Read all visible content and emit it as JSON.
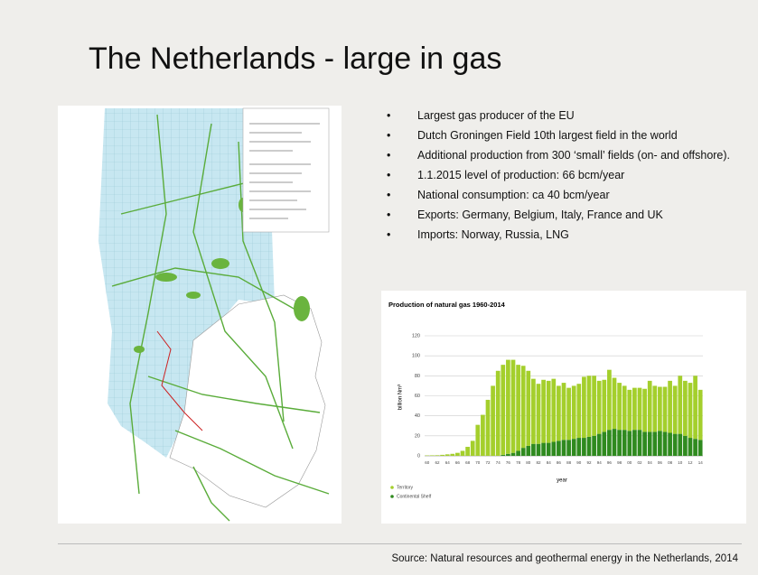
{
  "slide": {
    "title": "The Netherlands - large in gas",
    "bullets": [
      "Largest gas producer of the EU",
      "Dutch Groningen Field 10th largest field in the world",
      "Additional production from 300 ‘small’ fields (on- and offshore).",
      "1.1.2015 level of production: 66 bcm/year",
      "National consumption: ca 40 bcm/year",
      "Exports: Germany, Belgium, Italy, France and UK",
      "Imports: Norway, Russia, LNG"
    ],
    "source": "Source: Natural resources and geothermal energy in the Netherlands, 2014"
  },
  "chart_data": {
    "type": "stacked_bar",
    "title": "Production of natural gas 1960-2014",
    "x_label": "year",
    "y_label": "billion Nm³",
    "categories": [
      "60",
      null,
      "62",
      null,
      "64",
      null,
      "66",
      null,
      "68",
      null,
      "70",
      null,
      "72",
      null,
      "74",
      null,
      "76",
      null,
      "78",
      null,
      "80",
      null,
      "82",
      null,
      "84",
      null,
      "86",
      null,
      "88",
      null,
      "90",
      null,
      "92",
      null,
      "94",
      null,
      "96",
      null,
      "98",
      null,
      "00",
      null,
      "02",
      null,
      "04",
      null,
      "06",
      null,
      "08",
      null,
      "10",
      null,
      "12",
      null,
      "14"
    ],
    "series": [
      {
        "name": "Continental Shelf",
        "color": "#2f8a1f",
        "values": [
          0,
          0,
          0,
          0,
          0,
          0,
          0,
          0,
          0,
          0,
          0,
          0,
          0,
          0,
          0,
          1,
          2,
          3,
          5,
          8,
          10,
          12,
          12,
          13,
          13,
          14,
          15,
          16,
          16,
          17,
          18,
          18,
          19,
          20,
          22,
          24,
          26,
          27,
          26,
          26,
          25,
          26,
          26,
          24,
          24,
          24,
          25,
          24,
          23,
          22,
          22,
          20,
          18,
          17,
          16
        ]
      },
      {
        "name": "Territory",
        "color": "#a4cf2c",
        "values": [
          0.4,
          0.5,
          0.6,
          1,
          1.5,
          2,
          3,
          5,
          9,
          15,
          31,
          41,
          56,
          70,
          85,
          90,
          94,
          93,
          86,
          82,
          75,
          65,
          60,
          63,
          62,
          63,
          55,
          57,
          52,
          53,
          54,
          61,
          61,
          60,
          53,
          52,
          60,
          51,
          47,
          44,
          41,
          42,
          42,
          43,
          51,
          46,
          44,
          45,
          52,
          48,
          58,
          55,
          55,
          63,
          50
        ]
      }
    ],
    "ylim": [
      0,
      120
    ],
    "yticks": [
      0,
      20,
      40,
      60,
      80,
      100,
      120
    ],
    "grid": true
  }
}
